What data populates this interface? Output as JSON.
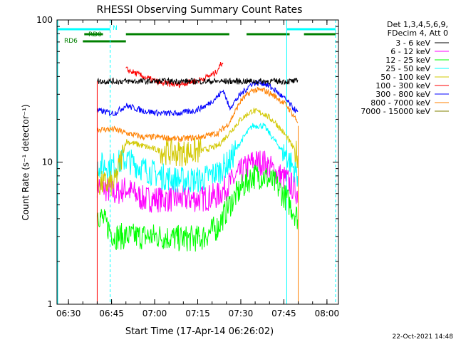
{
  "chart_data": {
    "type": "line",
    "title": "RHESSI Observing Summary Count Rates",
    "xlabel": "Start Time (17-Apr-14 06:26:02)",
    "ylabel": "Count Rate (s⁻¹ detector⁻¹)",
    "y_scale": "log",
    "ylim": [
      1,
      100
    ],
    "xlim_minutes_after_0626": [
      0,
      98
    ],
    "x_ticks": [
      {
        "label": "06:30",
        "t": 4
      },
      {
        "label": "06:45",
        "t": 19
      },
      {
        "label": "07:00",
        "t": 34
      },
      {
        "label": "07:15",
        "t": 49
      },
      {
        "label": "07:30",
        "t": 64
      },
      {
        "label": "07:45",
        "t": 79
      },
      {
        "label": "08:00",
        "t": 94
      }
    ],
    "y_ticks": [
      {
        "label": "1",
        "v": 1
      },
      {
        "label": "10",
        "v": 10
      },
      {
        "label": "100",
        "v": 100
      }
    ],
    "legend_header": [
      "Det 1,3,4,5,6,9,",
      "FDecim 4, Att 0"
    ],
    "legend_placement": "right",
    "flag_bars": [
      {
        "label": "N",
        "color": "#00ffff",
        "segments": [
          [
            0,
            18.5
          ],
          [
            80,
            97
          ]
        ]
      },
      {
        "label": "RD0",
        "color": "#008000",
        "segments": [
          [
            9.5,
            16
          ],
          [
            24,
            60
          ],
          [
            66,
            81
          ],
          [
            86,
            97
          ]
        ]
      },
      {
        "label": "RD6",
        "color": "#008000",
        "segments": [
          [
            9,
            24
          ]
        ]
      }
    ],
    "markers": {
      "night_solid": [
        0,
        80
      ],
      "saa_dashed": [
        18.5,
        97
      ]
    },
    "series": [
      {
        "name": "3 - 6 keV",
        "color": "#000000",
        "points": [
          [
            14,
            37
          ],
          [
            20,
            37
          ],
          [
            30,
            37
          ],
          [
            40,
            37
          ],
          [
            50,
            37
          ],
          [
            57,
            37
          ],
          [
            62,
            37
          ],
          [
            67,
            37
          ],
          [
            72,
            37
          ],
          [
            77,
            37
          ],
          [
            84,
            37
          ]
        ]
      },
      {
        "name": "6 - 12 keV",
        "color": "#ff00ff",
        "points": [
          [
            14,
            7
          ],
          [
            20,
            6
          ],
          [
            24,
            6.5
          ],
          [
            30,
            5.5
          ],
          [
            36,
            5.5
          ],
          [
            42,
            5.5
          ],
          [
            50,
            5.5
          ],
          [
            56,
            5.8
          ],
          [
            60,
            7
          ],
          [
            64,
            8.5
          ],
          [
            68,
            10
          ],
          [
            72,
            10
          ],
          [
            76,
            8.5
          ],
          [
            80,
            7.5
          ],
          [
            84,
            6
          ]
        ]
      },
      {
        "name": "12 - 25 keV",
        "color": "#00ff00",
        "points": [
          [
            14,
            4.5
          ],
          [
            20,
            3
          ],
          [
            24,
            3
          ],
          [
            30,
            3
          ],
          [
            36,
            3
          ],
          [
            42,
            2.9
          ],
          [
            50,
            2.9
          ],
          [
            56,
            3.5
          ],
          [
            60,
            5
          ],
          [
            64,
            6.5
          ],
          [
            68,
            8
          ],
          [
            72,
            8
          ],
          [
            76,
            7
          ],
          [
            80,
            5.5
          ],
          [
            84,
            4
          ]
        ]
      },
      {
        "name": "25 - 50 keV",
        "color": "#00ffff",
        "points": [
          [
            14,
            9.5
          ],
          [
            20,
            9.5
          ],
          [
            24,
            10.5
          ],
          [
            30,
            9
          ],
          [
            36,
            8
          ],
          [
            42,
            7.5
          ],
          [
            50,
            7.5
          ],
          [
            56,
            8.5
          ],
          [
            60,
            10
          ],
          [
            64,
            14
          ],
          [
            68,
            18
          ],
          [
            72,
            18
          ],
          [
            76,
            14
          ],
          [
            80,
            11
          ],
          [
            84,
            8
          ]
        ]
      },
      {
        "name": "50 - 100 keV",
        "color": "#d2c800",
        "points": [
          [
            14,
            7
          ],
          [
            20,
            7
          ],
          [
            24,
            14
          ],
          [
            30,
            13
          ],
          [
            36,
            12
          ],
          [
            42,
            11.5
          ],
          [
            50,
            12
          ],
          [
            56,
            13
          ],
          [
            60,
            16
          ],
          [
            64,
            20
          ],
          [
            68,
            23
          ],
          [
            72,
            22
          ],
          [
            76,
            19
          ],
          [
            80,
            15
          ],
          [
            84,
            11
          ]
        ]
      },
      {
        "name": "100 - 300 keV",
        "color": "#ff0000",
        "points": [
          [
            24,
            45
          ],
          [
            30,
            40
          ],
          [
            36,
            36
          ],
          [
            42,
            35
          ],
          [
            50,
            38
          ],
          [
            55,
            42
          ],
          [
            58,
            52
          ]
        ]
      },
      {
        "name": "300 - 800 keV",
        "color": "#0000ff",
        "points": [
          [
            14,
            23
          ],
          [
            20,
            22
          ],
          [
            24,
            25
          ],
          [
            30,
            23
          ],
          [
            36,
            22
          ],
          [
            42,
            22
          ],
          [
            48,
            23
          ],
          [
            52,
            25
          ],
          [
            56,
            29
          ],
          [
            58,
            32
          ],
          [
            60,
            24
          ],
          [
            64,
            30
          ],
          [
            68,
            36
          ],
          [
            72,
            36
          ],
          [
            76,
            32
          ],
          [
            80,
            27
          ],
          [
            84,
            22
          ]
        ]
      },
      {
        "name": "800 - 7000 keV",
        "color": "#ff8000",
        "points": [
          [
            14,
            17
          ],
          [
            20,
            17
          ],
          [
            24,
            16
          ],
          [
            30,
            15
          ],
          [
            36,
            15
          ],
          [
            42,
            14.5
          ],
          [
            50,
            15
          ],
          [
            56,
            16
          ],
          [
            59,
            18
          ],
          [
            60,
            19
          ],
          [
            64,
            27
          ],
          [
            68,
            32
          ],
          [
            72,
            32
          ],
          [
            76,
            29
          ],
          [
            80,
            25
          ],
          [
            84,
            19
          ]
        ]
      },
      {
        "name": "7000 - 15000 keV",
        "color": "#808000",
        "points": []
      }
    ]
  },
  "footer": {
    "date_stamp": "22-Oct-2021 14:48"
  }
}
